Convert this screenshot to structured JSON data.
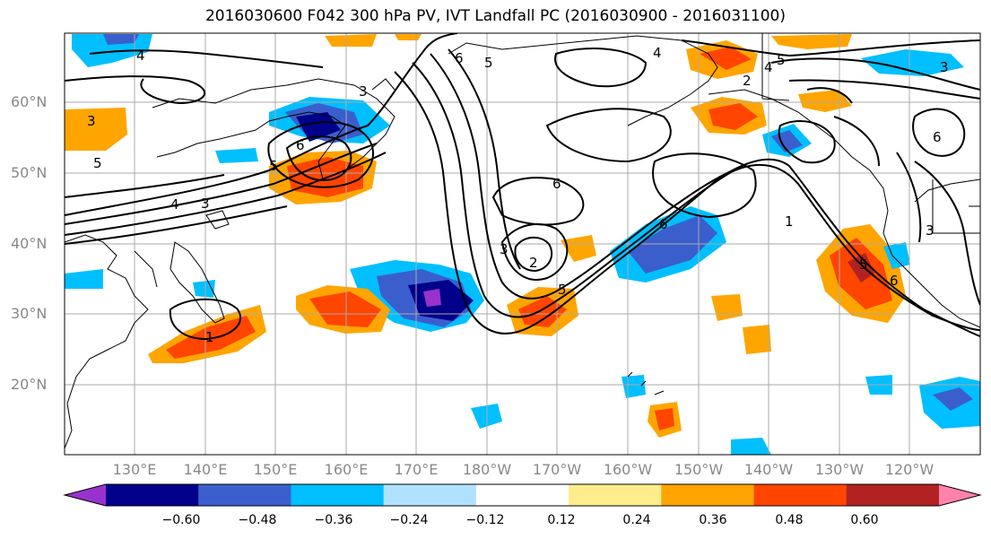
{
  "title": "2016030600 F042 300 hPa PV, IVT Landfall PC (2016030900 - 2016031100)",
  "map": {
    "lat_labels": [
      "60°N",
      "50°N",
      "40°N",
      "30°N",
      "20°N"
    ],
    "lon_labels": [
      "130°E",
      "140°E",
      "150°E",
      "160°E",
      "170°E",
      "180°W",
      "170°W",
      "160°W",
      "150°W",
      "140°W",
      "130°W",
      "120°W"
    ],
    "contour_labels": [
      "4",
      "3",
      "5",
      "6",
      "3",
      "4",
      "5",
      "6",
      "3",
      "2",
      "5",
      "6",
      "4",
      "5",
      "2",
      "3",
      "4",
      "6",
      "6",
      "5",
      "1",
      "3",
      "5",
      "6",
      "3",
      "1"
    ]
  },
  "colorbar": {
    "colors": [
      "#9932CC",
      "#00008B",
      "#3A5FCD",
      "#00BFFF",
      "#B0E2FF",
      "#FFFFFF",
      "#FFEC8B",
      "#FFA500",
      "#FF4500",
      "#B22222",
      "#FF82AB"
    ],
    "tick_labels": [
      "−0.60",
      "−0.48",
      "−0.36",
      "−0.24",
      "−0.12",
      "0.12",
      "0.24",
      "0.36",
      "0.48",
      "0.60"
    ]
  }
}
